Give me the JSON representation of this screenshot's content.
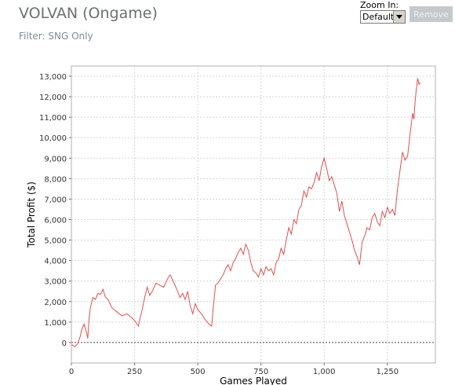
{
  "header": {
    "title": "VOLVAN (Ongame)",
    "filter": "Filter: SNG Only"
  },
  "zoom": {
    "label": "Zoom In:",
    "selected": "Default"
  },
  "remove_button": "Remove",
  "colors": {
    "line": "#e05050",
    "grid": "#d4d4d4",
    "zero_line": "#444444"
  },
  "chart_data": {
    "type": "line",
    "title": "",
    "xlabel": "Games Played",
    "ylabel": "Total Profit ($)",
    "xlim": [
      0,
      1440
    ],
    "ylim": [
      -1000,
      13500
    ],
    "x_ticks": [
      0,
      250,
      500,
      750,
      1000,
      1250
    ],
    "x_tick_labels": [
      "0",
      "250",
      "500",
      "750",
      "1,000",
      "1,250"
    ],
    "y_ticks": [
      0,
      1000,
      2000,
      3000,
      4000,
      5000,
      6000,
      7000,
      8000,
      9000,
      10000,
      11000,
      12000,
      13000
    ],
    "y_tick_labels": [
      "0",
      "1,000",
      "2,000",
      "3,000",
      "4,000",
      "5,000",
      "6,000",
      "7,000",
      "8,000",
      "9,000",
      "10,000",
      "11,000",
      "12,000",
      "13,000"
    ],
    "grid": true,
    "series": [
      {
        "x": [
          0,
          15,
          25,
          35,
          40,
          50,
          60,
          65,
          70,
          75,
          85,
          95,
          105,
          115,
          125,
          135,
          145,
          160,
          180,
          200,
          220,
          240,
          255,
          265,
          270,
          280,
          290,
          300,
          310,
          320,
          335,
          350,
          365,
          380,
          390,
          395,
          410,
          420,
          430,
          440,
          450,
          460,
          470,
          480,
          490,
          500,
          515,
          530,
          545,
          555,
          560,
          570,
          580,
          590,
          600,
          610,
          620,
          630,
          640,
          650,
          660,
          670,
          680,
          690,
          700,
          710,
          720,
          730,
          740,
          750,
          760,
          770,
          780,
          790,
          800,
          810,
          820,
          830,
          840,
          850,
          860,
          870,
          880,
          890,
          900,
          910,
          920,
          930,
          940,
          950,
          960,
          970,
          980,
          990,
          1000,
          1010,
          1020,
          1030,
          1040,
          1050,
          1060,
          1070,
          1080,
          1090,
          1100,
          1110,
          1120,
          1130,
          1140,
          1150,
          1160,
          1170,
          1180,
          1190,
          1200,
          1210,
          1220,
          1230,
          1240,
          1250,
          1260,
          1270,
          1280,
          1290,
          1300,
          1310,
          1320,
          1330,
          1340,
          1350,
          1355,
          1360,
          1365,
          1370,
          1375,
          1380
        ],
        "y": [
          -100,
          -200,
          -50,
          300,
          600,
          900,
          500,
          200,
          1200,
          1700,
          2200,
          2100,
          2400,
          2350,
          2600,
          2200,
          2100,
          1700,
          1500,
          1300,
          1400,
          1200,
          1000,
          800,
          1100,
          1600,
          2200,
          2700,
          2300,
          2500,
          2900,
          2800,
          2700,
          3100,
          3300,
          3200,
          2800,
          2500,
          2200,
          2400,
          2100,
          2500,
          1800,
          1400,
          1900,
          1600,
          1400,
          1100,
          900,
          800,
          1500,
          2800,
          2900,
          3100,
          3300,
          3600,
          3800,
          3500,
          3900,
          4100,
          4400,
          4600,
          4300,
          4800,
          4500,
          3900,
          3500,
          3400,
          3200,
          3600,
          3300,
          3700,
          3500,
          3600,
          3300,
          3900,
          4100,
          4600,
          4300,
          5000,
          5600,
          5300,
          6000,
          5800,
          6500,
          6700,
          7400,
          7100,
          7600,
          7500,
          7800,
          8300,
          7900,
          8600,
          9000,
          8500,
          7900,
          8100,
          7700,
          7300,
          6400,
          6900,
          6200,
          5800,
          5400,
          5000,
          4500,
          4200,
          3800,
          4900,
          5200,
          5600,
          5500,
          6100,
          6300,
          5900,
          5700,
          6400,
          6100,
          6600,
          6300,
          6500,
          6200,
          7500,
          8400,
          9300,
          8900,
          9100,
          10200,
          11200,
          10900,
          11800,
          12400,
          12900,
          12600,
          12700
        ]
      }
    ]
  }
}
